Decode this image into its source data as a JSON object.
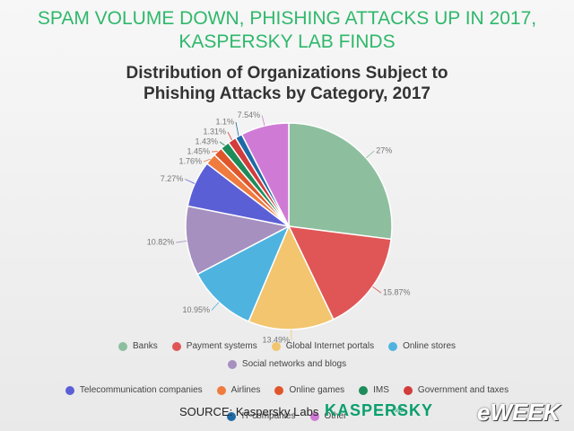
{
  "header": {
    "title": "SPAM VOLUME DOWN, PHISHING ATTACKS UP IN 2017, KASPERSKY LAB FINDS"
  },
  "chart_data": {
    "type": "pie",
    "title": "Distribution of Organizations Subject to Phishing Attacks by Category, 2017",
    "categories": [
      "Banks",
      "Payment systems",
      "Global Internet portals",
      "Online stores",
      "Social networks and blogs",
      "Telecommunication companies",
      "Airlines",
      "Online games",
      "IMS",
      "Government and taxes",
      "IT-companies",
      "Other"
    ],
    "values": [
      27,
      15.87,
      13.49,
      10.95,
      10.82,
      7.27,
      1.76,
      1.45,
      1.43,
      1.31,
      1.1,
      7.54
    ],
    "value_labels": [
      "27%",
      "15.87%",
      "13.49%",
      "10.95%",
      "10.82%",
      "7.27%",
      "1.76%",
      "1.45%",
      "1.43%",
      "1.31%",
      "1.1%",
      "7.54%"
    ],
    "colors": [
      "#8dbf9f",
      "#e05656",
      "#f2c56e",
      "#4fb3e0",
      "#a590c0",
      "#5b5fd6",
      "#f07b3f",
      "#e0562b",
      "#1e8c5a",
      "#d23c3c",
      "#1f6aa5",
      "#cf7bd6"
    ]
  },
  "footer": {
    "source": "SOURCE: Kaspersky Labs",
    "logo": "KASPERSKY",
    "logo_sub": "lab",
    "brand": "eWEEK"
  }
}
